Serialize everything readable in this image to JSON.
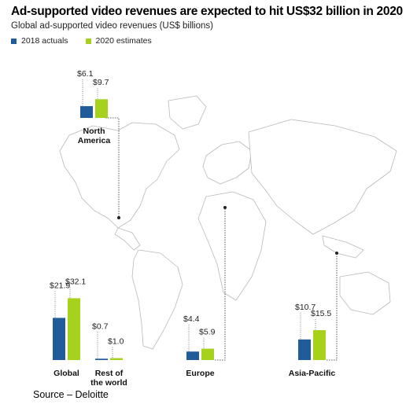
{
  "title": "Ad-supported video revenues are expected to hit US$32 billion in 2020",
  "subtitle": "Global ad-supported video revenues (US$ billions)",
  "legend": [
    {
      "label": "2018 actuals",
      "color": "#1f5c99"
    },
    {
      "label": "2020 estimates",
      "color": "#a6d11d"
    }
  ],
  "source": "Source – Deloitte",
  "chart_data": {
    "type": "bar",
    "categories": [
      "North America",
      "Global",
      "Rest of the world",
      "Europe",
      "Asia-Pacific"
    ],
    "series": [
      {
        "name": "2018 actuals",
        "values": [
          6.1,
          21.9,
          0.7,
          4.4,
          10.7
        ]
      },
      {
        "name": "2020 estimates",
        "values": [
          9.7,
          32.1,
          1.0,
          5.9,
          15.5
        ]
      }
    ],
    "value_labels": [
      [
        "$6.1",
        "$9.7"
      ],
      [
        "$21.9",
        "$32.1"
      ],
      [
        "$0.7",
        "$1.0"
      ],
      [
        "$4.4",
        "$5.9"
      ],
      [
        "$10.7",
        "$15.5"
      ]
    ],
    "category_labels": [
      [
        "North",
        "America"
      ],
      [
        "Global"
      ],
      [
        "Rest of",
        "the world"
      ],
      [
        "Europe"
      ],
      [
        "Asia-Pacific"
      ]
    ],
    "colors": {
      "2018 actuals": "#1f5c99",
      "2020 estimates": "#a6d11d"
    },
    "background": "world map"
  }
}
